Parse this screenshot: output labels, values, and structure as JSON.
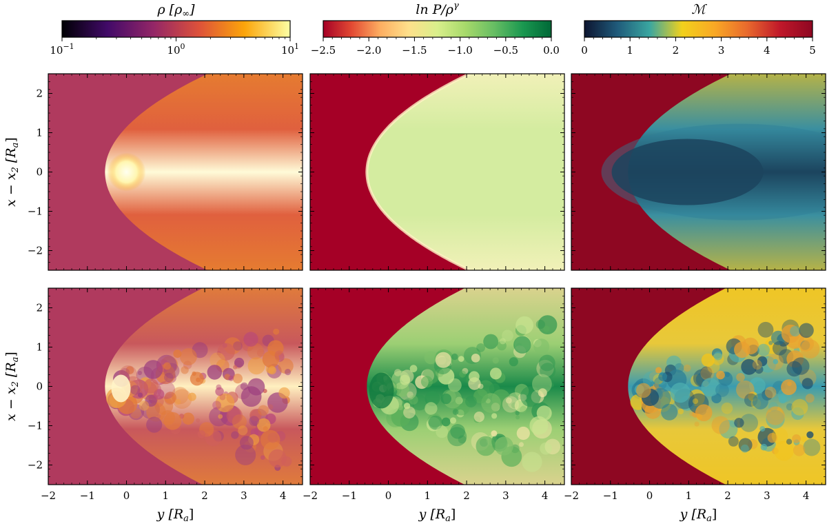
{
  "chart_data": {
    "type": "heatmap",
    "layout": {
      "rows": 2,
      "cols": 3,
      "shared_x_axis": true,
      "shared_y_axis": true
    },
    "x_axis": {
      "label": "y [R_a]",
      "label_parts": [
        "y",
        "[R",
        "a",
        "]"
      ],
      "range": [
        -2,
        4.5
      ],
      "ticks": [
        -2,
        -1,
        0,
        1,
        2,
        3,
        4
      ],
      "tick_labels": [
        "−2",
        "−1",
        "0",
        "1",
        "2",
        "3",
        "4"
      ],
      "minor_step": 0.2
    },
    "y_axis": {
      "label": "x − x_2 [R_a]",
      "label_parts": [
        "x − x",
        "2",
        "[R",
        "a",
        "]"
      ],
      "range": [
        -2.5,
        2.5
      ],
      "ticks": [
        -2,
        -1,
        0,
        1,
        2
      ],
      "tick_labels": [
        "−2",
        "−1",
        "0",
        "1",
        "2"
      ],
      "minor_step": 0.2
    },
    "colorbars": [
      {
        "quantity": "density",
        "title": "ρ [ρ∞]",
        "title_parts": [
          "ρ [ρ",
          "∞",
          "]"
        ],
        "cmap": "inferno",
        "scale": "log",
        "range": [
          0.1,
          10
        ],
        "ticks": [
          0.1,
          1,
          10
        ],
        "tick_labels": [
          {
            "base": "10",
            "exp": "−1"
          },
          {
            "base": "10",
            "exp": "0"
          },
          {
            "base": "10",
            "exp": "1"
          }
        ],
        "stops": [
          "#000004",
          "#420a68",
          "#932667",
          "#dd513a",
          "#fca50a",
          "#fcffa4"
        ]
      },
      {
        "quantity": "entropy",
        "title": "ln P/ρ^γ",
        "title_parts": [
          "ln P/ρ",
          "γ"
        ],
        "cmap": "RdYlGn",
        "scale": "linear",
        "range": [
          -2.5,
          0.0
        ],
        "ticks": [
          -2.5,
          -2.0,
          -1.5,
          -1.0,
          -0.5,
          0.0
        ],
        "tick_labels": [
          "−2.5",
          "−2.0",
          "−1.5",
          "−1.0",
          "−0.5",
          "0.0"
        ],
        "stops": [
          "#a50026",
          "#e34a33",
          "#fdae61",
          "#fee08b",
          "#d9ef8b",
          "#a6d96a",
          "#66bd63",
          "#1a9850",
          "#006837"
        ]
      },
      {
        "quantity": "mach",
        "title": "ℳ",
        "cmap": "custom (navy–teal–yellow–orange–red–dark red)",
        "scale": "linear",
        "range": [
          0,
          5
        ],
        "ticks": [
          0,
          1,
          2,
          3,
          4,
          5
        ],
        "tick_labels": [
          "0",
          "1",
          "2",
          "3",
          "4",
          "5"
        ],
        "stops": [
          "#0d1530",
          "#1f5a7a",
          "#3aa6a0",
          "#f2d11c",
          "#f9a825",
          "#e8692d",
          "#c0182a",
          "#8e0722"
        ]
      }
    ],
    "panels": [
      {
        "row": 0,
        "col": 0,
        "field": "density",
        "state": "smooth",
        "ambient": "#b03a5e",
        "shock": "#e8892a",
        "interior": "#e0603e",
        "core": "#fffbd8"
      },
      {
        "row": 0,
        "col": 1,
        "field": "entropy",
        "state": "smooth",
        "ambient": "#a50026",
        "shock": "#fff3c4",
        "interior": "#d4eca0",
        "core": "#d4eca0"
      },
      {
        "row": 0,
        "col": 2,
        "field": "mach",
        "state": "smooth",
        "ambient": "#8e0722",
        "shock": "#f2c41c",
        "interior": "#3a8fa0",
        "core": "#0d1530"
      },
      {
        "row": 1,
        "col": 0,
        "field": "density",
        "state": "turbulent",
        "ambient": "#b03a5e",
        "shock": "#eb8c2c",
        "interior": "#c8585c",
        "core": "#fff0c0"
      },
      {
        "row": 1,
        "col": 1,
        "field": "entropy",
        "state": "turbulent",
        "ambient": "#a50026",
        "shock": "#f8d49a",
        "interior": "#9ccf74",
        "core": "#1a8a4a"
      },
      {
        "row": 1,
        "col": 2,
        "field": "mach",
        "state": "turbulent",
        "ambient": "#8e0722",
        "shock": "#f2c41c",
        "interior": "#e8c83a",
        "core": "#3a9cb0"
      }
    ]
  }
}
